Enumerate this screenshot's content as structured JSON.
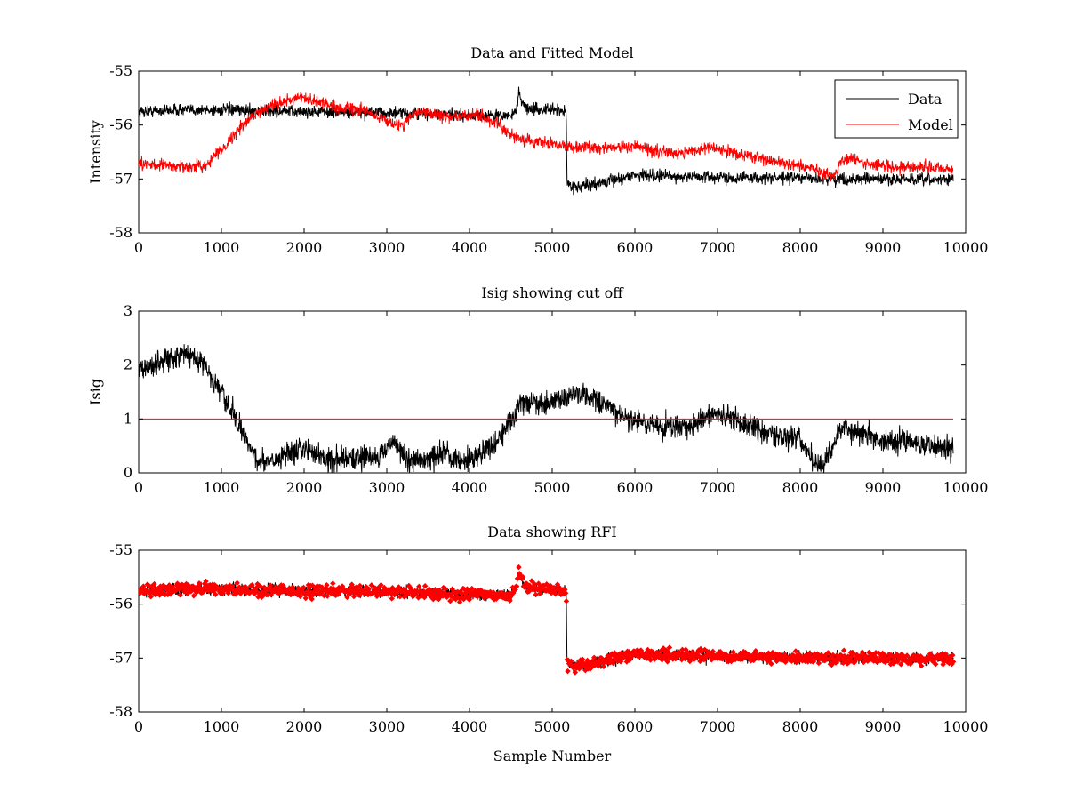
{
  "chart_data": [
    {
      "type": "line",
      "title": "Data and Fitted Model",
      "xlabel": "",
      "ylabel": "Intensity",
      "xlim": [
        0,
        10000
      ],
      "ylim": [
        -58,
        -55
      ],
      "xticks": [
        "0",
        "1000",
        "2000",
        "3000",
        "4000",
        "5000",
        "6000",
        "7000",
        "8000",
        "9000",
        "10000"
      ],
      "yticks": [
        "-58",
        "-57",
        "-56",
        "-55"
      ],
      "grid": false,
      "legend": "top-right",
      "noise": 0.11,
      "series": [
        {
          "name": "Data",
          "color": "#000000",
          "style": "line",
          "x": [
            0,
            500,
            1000,
            1500,
            2000,
            2500,
            3000,
            3500,
            4000,
            4500,
            4560,
            4600,
            4650,
            4700,
            5000,
            5170,
            5180,
            5200,
            5300,
            5500,
            5800,
            6000,
            6500,
            7000,
            7500,
            8000,
            8500,
            9000,
            9500,
            9850
          ],
          "y": [
            -55.75,
            -55.72,
            -55.72,
            -55.74,
            -55.75,
            -55.76,
            -55.78,
            -55.8,
            -55.82,
            -55.83,
            -55.75,
            -55.4,
            -55.62,
            -55.7,
            -55.72,
            -55.74,
            -57.1,
            -57.1,
            -57.15,
            -57.1,
            -57.0,
            -56.92,
            -56.95,
            -56.97,
            -56.98,
            -56.98,
            -57.0,
            -57.0,
            -57.02,
            -57.0
          ]
        },
        {
          "name": "Model",
          "color": "#ff0000",
          "style": "line",
          "x": [
            0,
            200,
            400,
            600,
            800,
            1000,
            1200,
            1400,
            1600,
            1800,
            1950,
            2200,
            2500,
            2700,
            2900,
            3000,
            3100,
            3200,
            3300,
            3500,
            3700,
            3900,
            4100,
            4300,
            4500,
            4700,
            5000,
            5200,
            5500,
            6000,
            6300,
            6600,
            6900,
            7100,
            7400,
            7700,
            8000,
            8200,
            8300,
            8400,
            8500,
            8600,
            8800,
            9200,
            9500,
            9850
          ],
          "y": [
            -56.72,
            -56.73,
            -56.76,
            -56.78,
            -56.75,
            -56.45,
            -56.1,
            -55.8,
            -55.62,
            -55.55,
            -55.5,
            -55.58,
            -55.7,
            -55.72,
            -55.85,
            -55.9,
            -56.0,
            -56.0,
            -55.8,
            -55.75,
            -55.85,
            -55.85,
            -55.8,
            -55.95,
            -56.2,
            -56.3,
            -56.35,
            -56.4,
            -56.42,
            -56.4,
            -56.5,
            -56.5,
            -56.42,
            -56.48,
            -56.58,
            -56.68,
            -56.78,
            -56.82,
            -56.9,
            -56.95,
            -56.65,
            -56.62,
            -56.72,
            -56.78,
            -56.78,
            -56.82
          ]
        }
      ]
    },
    {
      "type": "line",
      "title": "Isig showing cut off",
      "xlabel": "",
      "ylabel": "Isig",
      "xlim": [
        0,
        10000
      ],
      "ylim": [
        0,
        3
      ],
      "xticks": [
        "0",
        "1000",
        "2000",
        "3000",
        "4000",
        "5000",
        "6000",
        "7000",
        "8000",
        "9000",
        "10000"
      ],
      "yticks": [
        "0",
        "1",
        "2",
        "3"
      ],
      "grid": false,
      "noise": 0.22,
      "series": [
        {
          "color": "#000000",
          "style": "line",
          "x": [
            0,
            200,
            400,
            600,
            750,
            900,
            1100,
            1300,
            1450,
            1700,
            1900,
            2100,
            2300,
            2500,
            2700,
            2900,
            3000,
            3100,
            3200,
            3300,
            3500,
            3700,
            3900,
            4100,
            4300,
            4500,
            4600,
            4700,
            5000,
            5300,
            5500,
            5800,
            6000,
            6300,
            6700,
            7000,
            7200,
            7500,
            7800,
            8000,
            8150,
            8250,
            8350,
            8500,
            8700,
            9000,
            9300,
            9600,
            9850
          ],
          "y": [
            1.9,
            2.0,
            2.15,
            2.2,
            2.1,
            1.7,
            1.2,
            0.6,
            0.2,
            0.3,
            0.45,
            0.4,
            0.25,
            0.25,
            0.3,
            0.3,
            0.45,
            0.6,
            0.3,
            0.2,
            0.25,
            0.35,
            0.25,
            0.3,
            0.55,
            0.95,
            1.3,
            1.3,
            1.3,
            1.5,
            1.35,
            1.1,
            0.95,
            0.85,
            0.9,
            1.1,
            1.0,
            0.8,
            0.65,
            0.65,
            0.2,
            0.15,
            0.35,
            0.85,
            0.75,
            0.6,
            0.6,
            0.5,
            0.45
          ]
        },
        {
          "color": "#ff0000",
          "style": "line",
          "x": [
            0,
            9850
          ],
          "y": [
            1,
            1
          ]
        }
      ]
    },
    {
      "type": "line",
      "title": "Data showing RFI",
      "xlabel": "Sample Number",
      "ylabel": "",
      "xlim": [
        0,
        10000
      ],
      "ylim": [
        -58,
        -55
      ],
      "xticks": [
        "0",
        "1000",
        "2000",
        "3000",
        "4000",
        "5000",
        "6000",
        "7000",
        "8000",
        "9000",
        "10000"
      ],
      "yticks": [
        "-58",
        "-57",
        "-56",
        "-55"
      ],
      "grid": false,
      "noise": 0.11,
      "series": [
        {
          "color": "#000000",
          "style": "line",
          "x": [
            0,
            500,
            1000,
            1500,
            2000,
            2500,
            3000,
            3500,
            4000,
            4500,
            4560,
            4600,
            4650,
            4700,
            5000,
            5170,
            5180,
            5200,
            5300,
            5500,
            5800,
            6000,
            6500,
            7000,
            7500,
            8000,
            8500,
            9000,
            9500,
            9850
          ],
          "y": [
            -55.75,
            -55.72,
            -55.72,
            -55.74,
            -55.75,
            -55.76,
            -55.78,
            -55.8,
            -55.82,
            -55.83,
            -55.75,
            -55.4,
            -55.62,
            -55.7,
            -55.72,
            -55.74,
            -57.1,
            -57.1,
            -57.15,
            -57.1,
            -57.0,
            -56.92,
            -56.95,
            -56.97,
            -56.98,
            -56.98,
            -57.0,
            -57.0,
            -57.02,
            -57.0
          ]
        },
        {
          "color": "#ff0000",
          "style": "markers",
          "x": [
            0,
            500,
            1000,
            1500,
            2000,
            2500,
            3000,
            3500,
            4000,
            4500,
            4560,
            4600,
            4650,
            4700,
            5000,
            5170,
            5180,
            5200,
            5300,
            5500,
            5800,
            6000,
            6500,
            7000,
            7500,
            8000,
            8500,
            9000,
            9500,
            9850
          ],
          "y": [
            -55.75,
            -55.72,
            -55.72,
            -55.74,
            -55.75,
            -55.76,
            -55.78,
            -55.8,
            -55.82,
            -55.83,
            -55.75,
            -55.4,
            -55.62,
            -55.7,
            -55.72,
            -55.74,
            -57.1,
            -57.1,
            -57.15,
            -57.1,
            -57.0,
            -56.92,
            -56.95,
            -56.97,
            -56.98,
            -56.98,
            -57.0,
            -57.0,
            -57.02,
            -57.0
          ]
        }
      ]
    }
  ]
}
